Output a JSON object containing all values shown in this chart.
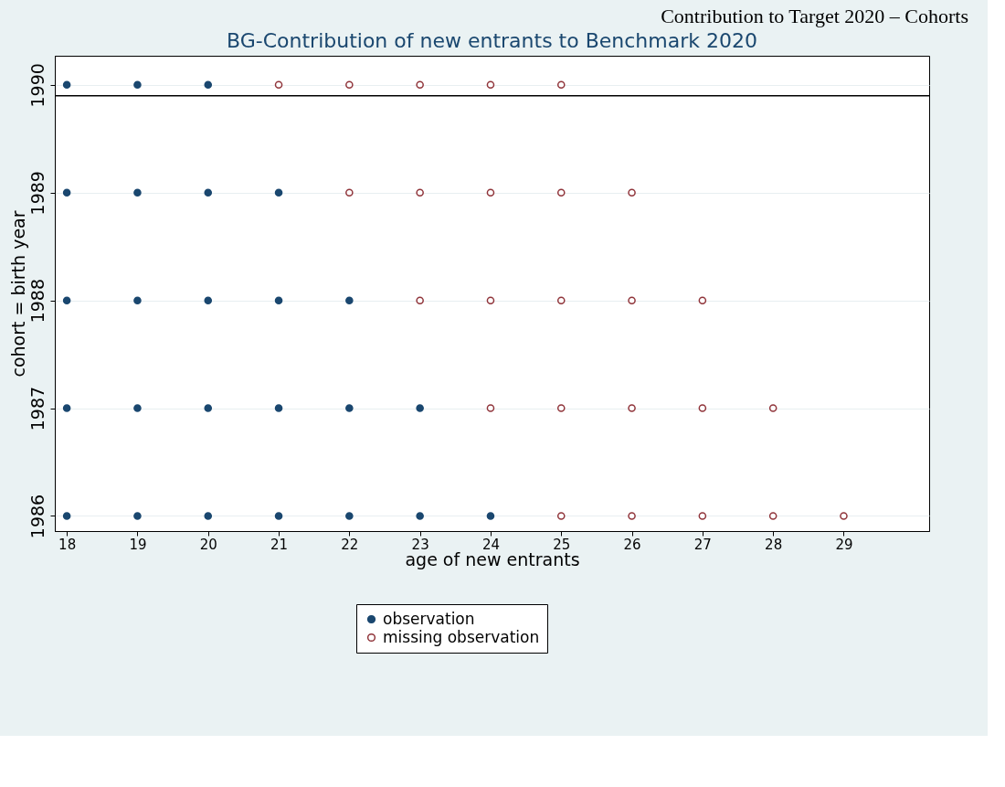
{
  "chart_data": {
    "type": "scatter",
    "title": "BG-Contribution of new entrants to Benchmark 2020",
    "xlabel": "age of new entrants",
    "ylabel": "cohort = birth year",
    "annotations": [
      "Contribution to Target 2020 – Cohorts"
    ],
    "series": [
      {
        "name": "observation",
        "color": "#1a476f",
        "x": [
          18,
          19,
          20,
          18,
          19,
          20,
          21,
          18,
          19,
          20,
          21,
          22,
          18,
          19,
          20,
          21,
          22,
          23,
          18,
          19,
          20,
          21,
          22,
          23,
          24
        ],
        "values": [
          1990,
          1990,
          1990,
          1989,
          1989,
          1989,
          1989,
          1988,
          1988,
          1988,
          1988,
          1988,
          1987,
          1987,
          1987,
          1987,
          1987,
          1987,
          1986,
          1986,
          1986,
          1986,
          1986,
          1986,
          1986
        ]
      },
      {
        "name": "missing observation",
        "color": "#90353b",
        "x": [
          21,
          22,
          23,
          24,
          25,
          22,
          23,
          24,
          25,
          26,
          23,
          24,
          25,
          26,
          27,
          24,
          25,
          26,
          27,
          28,
          25,
          26,
          27,
          28,
          29
        ],
        "values": [
          1990,
          1990,
          1990,
          1990,
          1990,
          1989,
          1989,
          1989,
          1989,
          1989,
          1988,
          1988,
          1988,
          1988,
          1988,
          1987,
          1987,
          1987,
          1987,
          1987,
          1986,
          1986,
          1986,
          1986,
          1986
        ]
      }
    ],
    "xlim": [
      17.83,
      30.21
    ],
    "xticks": [
      18,
      19,
      20,
      21,
      22,
      23,
      24,
      25,
      26,
      27,
      28,
      29
    ],
    "ylim": [
      1985.86,
      1990.27
    ],
    "yticks": [
      1986,
      1987,
      1988,
      1989,
      1990
    ],
    "ref_lines": [
      {
        "axis": "y",
        "value": 1989.9,
        "color": "#000000"
      }
    ],
    "grid": "y",
    "legend": "bottom",
    "marker": "circle"
  }
}
